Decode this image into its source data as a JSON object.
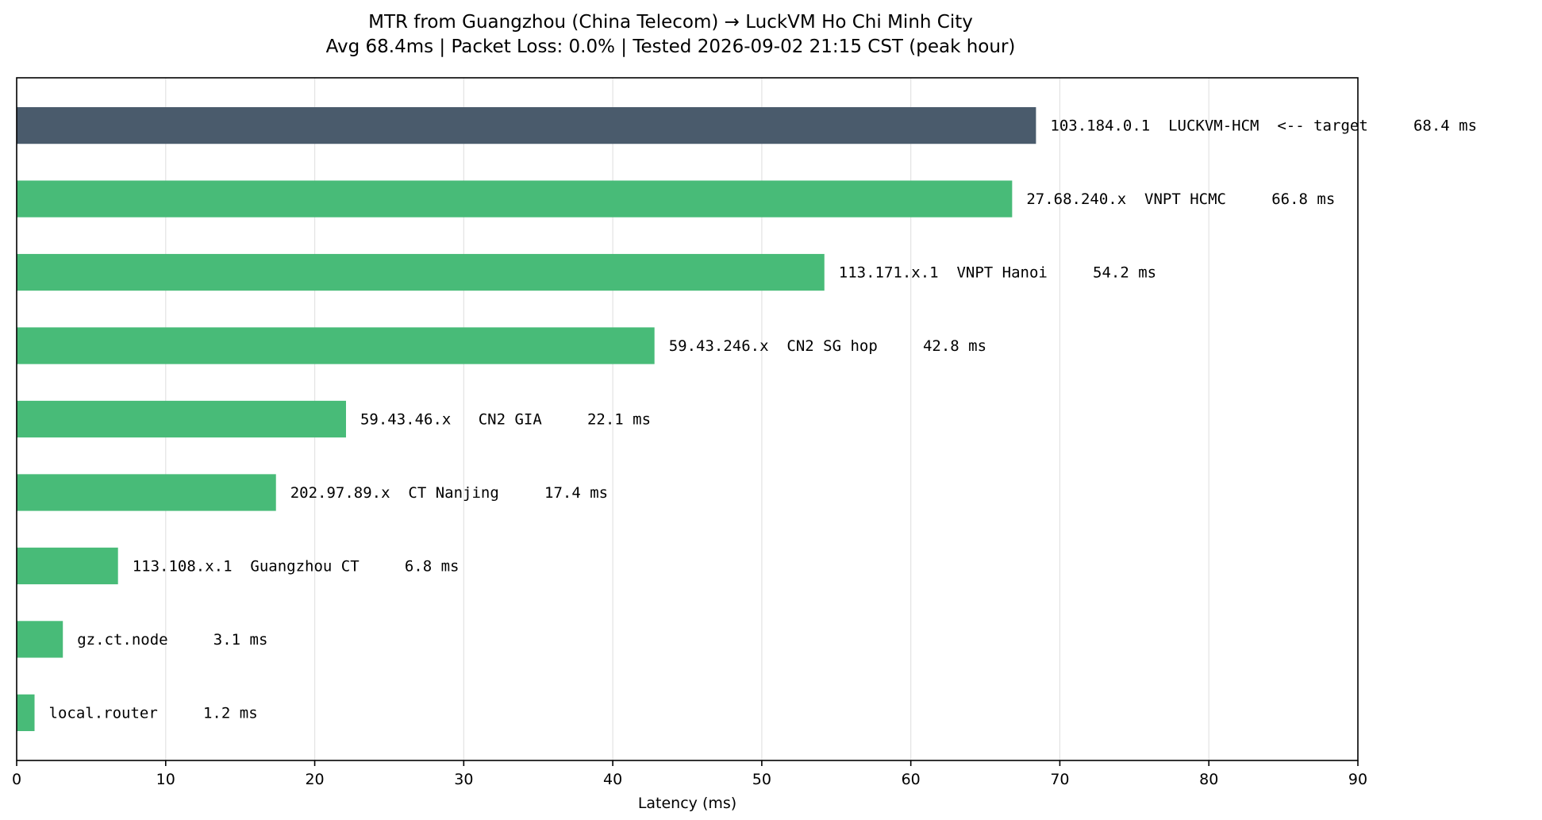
{
  "chart_data": {
    "type": "bar",
    "orientation": "horizontal",
    "title": "MTR from Guangzhou (China Telecom) → LuckVM Ho Chi Minh City",
    "subtitle": "Avg 68.4ms | Packet Loss: 0.0% | Tested 2026-09-02 21:15 CST (peak hour)",
    "xlabel": "Latency (ms)",
    "ylabel": "",
    "xlim": [
      0,
      90
    ],
    "xticks": [
      0,
      10,
      20,
      30,
      40,
      50,
      60,
      70,
      80,
      90
    ],
    "grid": "vertical",
    "categories": [
      "103.184.0.1  LUCKVM-HCM  <-- target",
      "27.68.240.x  VNPT HCMC",
      "113.171.x.1  VNPT Hanoi",
      "59.43.246.x  CN2 SG hop",
      "59.43.46.x   CN2 GIA",
      "202.97.89.x  CT Nanjing",
      "113.108.x.1  Guangzhou CT",
      "gz.ct.node",
      "local.router"
    ],
    "values": [
      68.4,
      66.8,
      54.2,
      42.8,
      22.1,
      17.4,
      6.8,
      3.1,
      1.2
    ],
    "value_labels": [
      "68.4 ms",
      "66.8 ms",
      "54.2 ms",
      "42.8 ms",
      "22.1 ms",
      "17.4 ms",
      "6.8 ms",
      "3.1 ms",
      "1.2 ms"
    ],
    "highlight_index": 0,
    "colors": {
      "target": "#4a5b6c",
      "hop": "#48bb78"
    }
  }
}
